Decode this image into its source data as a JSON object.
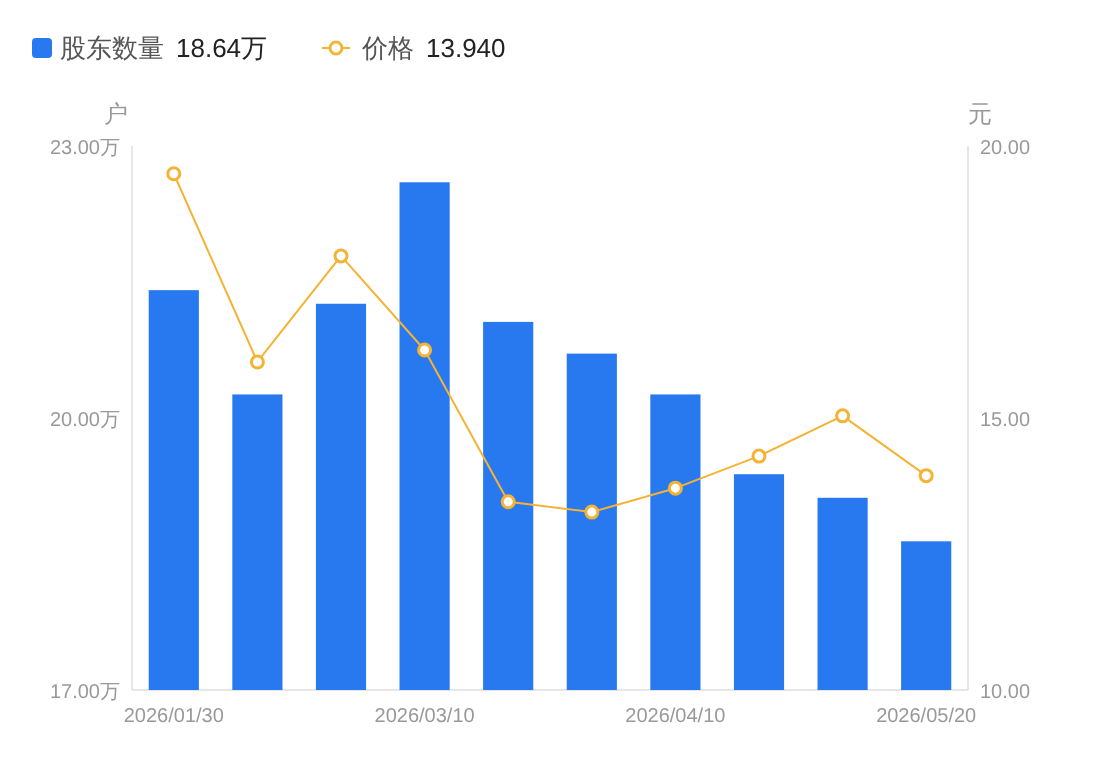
{
  "chart_data": {
    "type": "bar",
    "ylabel": "户",
    "y2label": "元",
    "categories": [
      "2026/01/30",
      null,
      null,
      "2026/03/10",
      null,
      null,
      "2026/04/10",
      null,
      null,
      "2026/05/20"
    ],
    "series": [
      {
        "name": "股东数量",
        "color": "#2878f0",
        "values": [
          21.41,
          20.26,
          21.26,
          22.6,
          21.06,
          20.71,
          20.26,
          19.38,
          19.12,
          18.64
        ]
      },
      {
        "name": "价格",
        "type": "line",
        "axis": "y2",
        "color": "#f5b335",
        "values": [
          19.49,
          16.03,
          17.98,
          16.25,
          13.46,
          13.27,
          13.71,
          14.3,
          15.04,
          13.94
        ]
      }
    ],
    "annotations": [
      "18.64万",
      "13.940"
    ],
    "ylim": [
      17,
      23
    ],
    "yticks": [
      {
        "value": 17,
        "label": "17.00万"
      },
      {
        "value": 20,
        "label": "20.00万"
      },
      {
        "value": 23,
        "label": "23.00万"
      }
    ],
    "y2lim": [
      10,
      20
    ],
    "y2ticks": [
      {
        "value": 10,
        "label": "10.00"
      },
      {
        "value": 15,
        "label": "15.00"
      },
      {
        "value": 20,
        "label": "20.00"
      }
    ],
    "legend": "top left",
    "marker": "circle",
    "grid": false
  }
}
